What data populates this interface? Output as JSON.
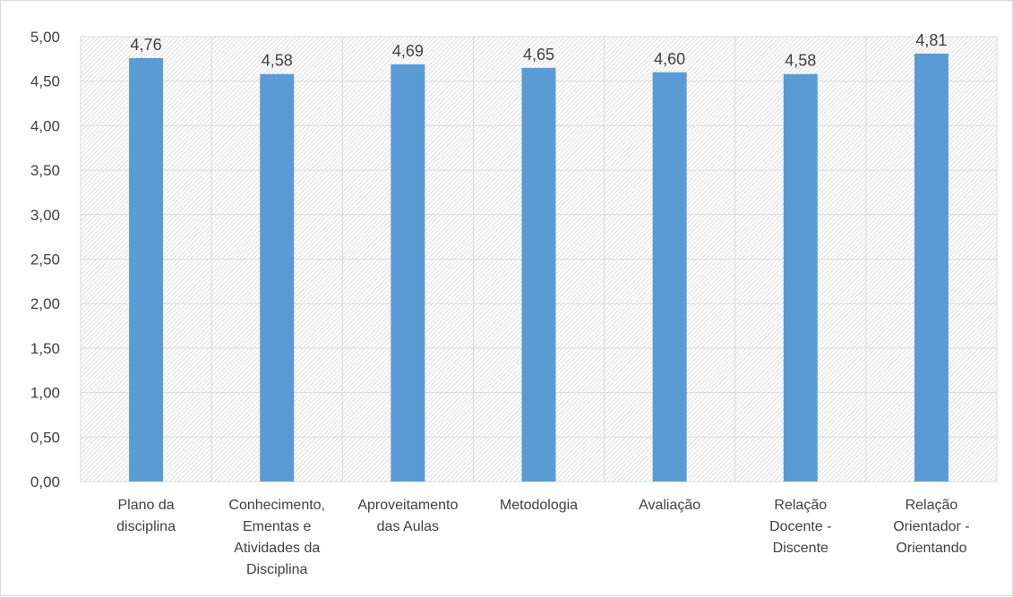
{
  "chart_data": {
    "type": "bar",
    "categories": [
      [
        "Plano da",
        "disciplina"
      ],
      [
        "Conhecimento,",
        "Ementas e",
        "Atividades da",
        "Disciplina"
      ],
      [
        "Aproveitamento",
        "das Aulas"
      ],
      [
        "Metodologia"
      ],
      [
        "Avaliação"
      ],
      [
        "Relação",
        "Docente -",
        "Discente"
      ],
      [
        "Relação",
        "Orientador -",
        "Orientando"
      ]
    ],
    "values": [
      4.76,
      4.58,
      4.69,
      4.65,
      4.6,
      4.58,
      4.81
    ],
    "value_labels": [
      "4,76",
      "4,58",
      "4,69",
      "4,65",
      "4,60",
      "4,58",
      "4,81"
    ],
    "yticks": [
      0,
      0.5,
      1,
      1.5,
      2,
      2.5,
      3,
      3.5,
      4,
      4.5,
      5
    ],
    "ytick_labels": [
      "0,00",
      "0,50",
      "1,00",
      "1,50",
      "2,00",
      "2,50",
      "3,00",
      "3,50",
      "4,00",
      "4,50",
      "5,00"
    ],
    "ylim": [
      0,
      5
    ],
    "title": "",
    "xlabel": "",
    "ylabel": "",
    "grid": true,
    "legend": "none",
    "colors": {
      "bar": "#5b9bd5",
      "grid": "#d9d9d9",
      "hatch": "#d9d9d9",
      "text": "#404040"
    }
  }
}
